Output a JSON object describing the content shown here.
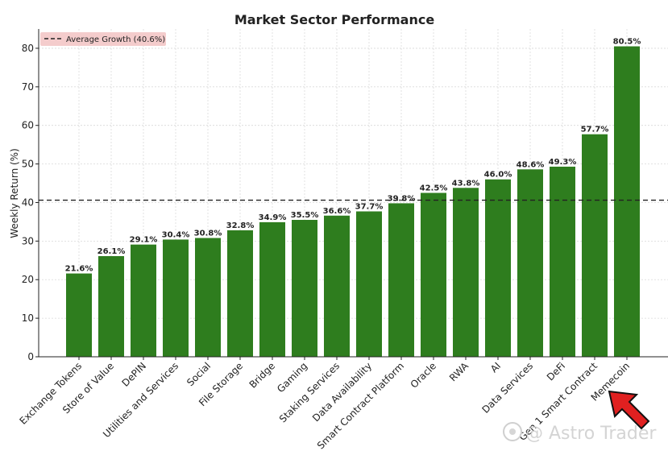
{
  "chart_data": {
    "type": "bar",
    "title": "Market Sector Performance",
    "xlabel": "",
    "ylabel": "Weekly Return (%)",
    "ylim": [
      0,
      85
    ],
    "yticks": [
      0,
      10,
      20,
      30,
      40,
      50,
      60,
      70,
      80
    ],
    "grid": true,
    "legend_position": "top-left",
    "bar_color": "#2e7d1e",
    "categories": [
      "Exchange Tokens",
      "Store of Value",
      "DePIN",
      "Utilities and Services",
      "Social",
      "File Storage",
      "Bridge",
      "Gaming",
      "Staking Services",
      "Data Availability",
      "Smart Contract Platform",
      "Oracle",
      "RWA",
      "AI",
      "Data Services",
      "DeFi",
      "Gen 1 Smart Contract",
      "Memecoin"
    ],
    "values": [
      21.6,
      26.1,
      29.1,
      30.4,
      30.8,
      32.8,
      34.9,
      35.5,
      36.6,
      37.7,
      39.8,
      42.5,
      43.8,
      46.0,
      48.6,
      49.3,
      57.7,
      80.5
    ],
    "data_labels": [
      "21.6%",
      "26.1%",
      "29.1%",
      "30.4%",
      "30.8%",
      "32.8%",
      "34.9%",
      "35.5%",
      "36.6%",
      "37.7%",
      "39.8%",
      "42.5%",
      "43.8%",
      "46.0%",
      "48.6%",
      "49.3%",
      "57.7%",
      "80.5%"
    ],
    "reference_line": {
      "value": 40.6,
      "label": "Average Growth (40.6%)",
      "style": "dashed",
      "color": "#222222"
    }
  },
  "watermark": {
    "text": "@ Astro Trader",
    "icon": "astro-logo-icon"
  },
  "annotation": {
    "icon": "red-arrow-icon",
    "color": "#e02020"
  }
}
